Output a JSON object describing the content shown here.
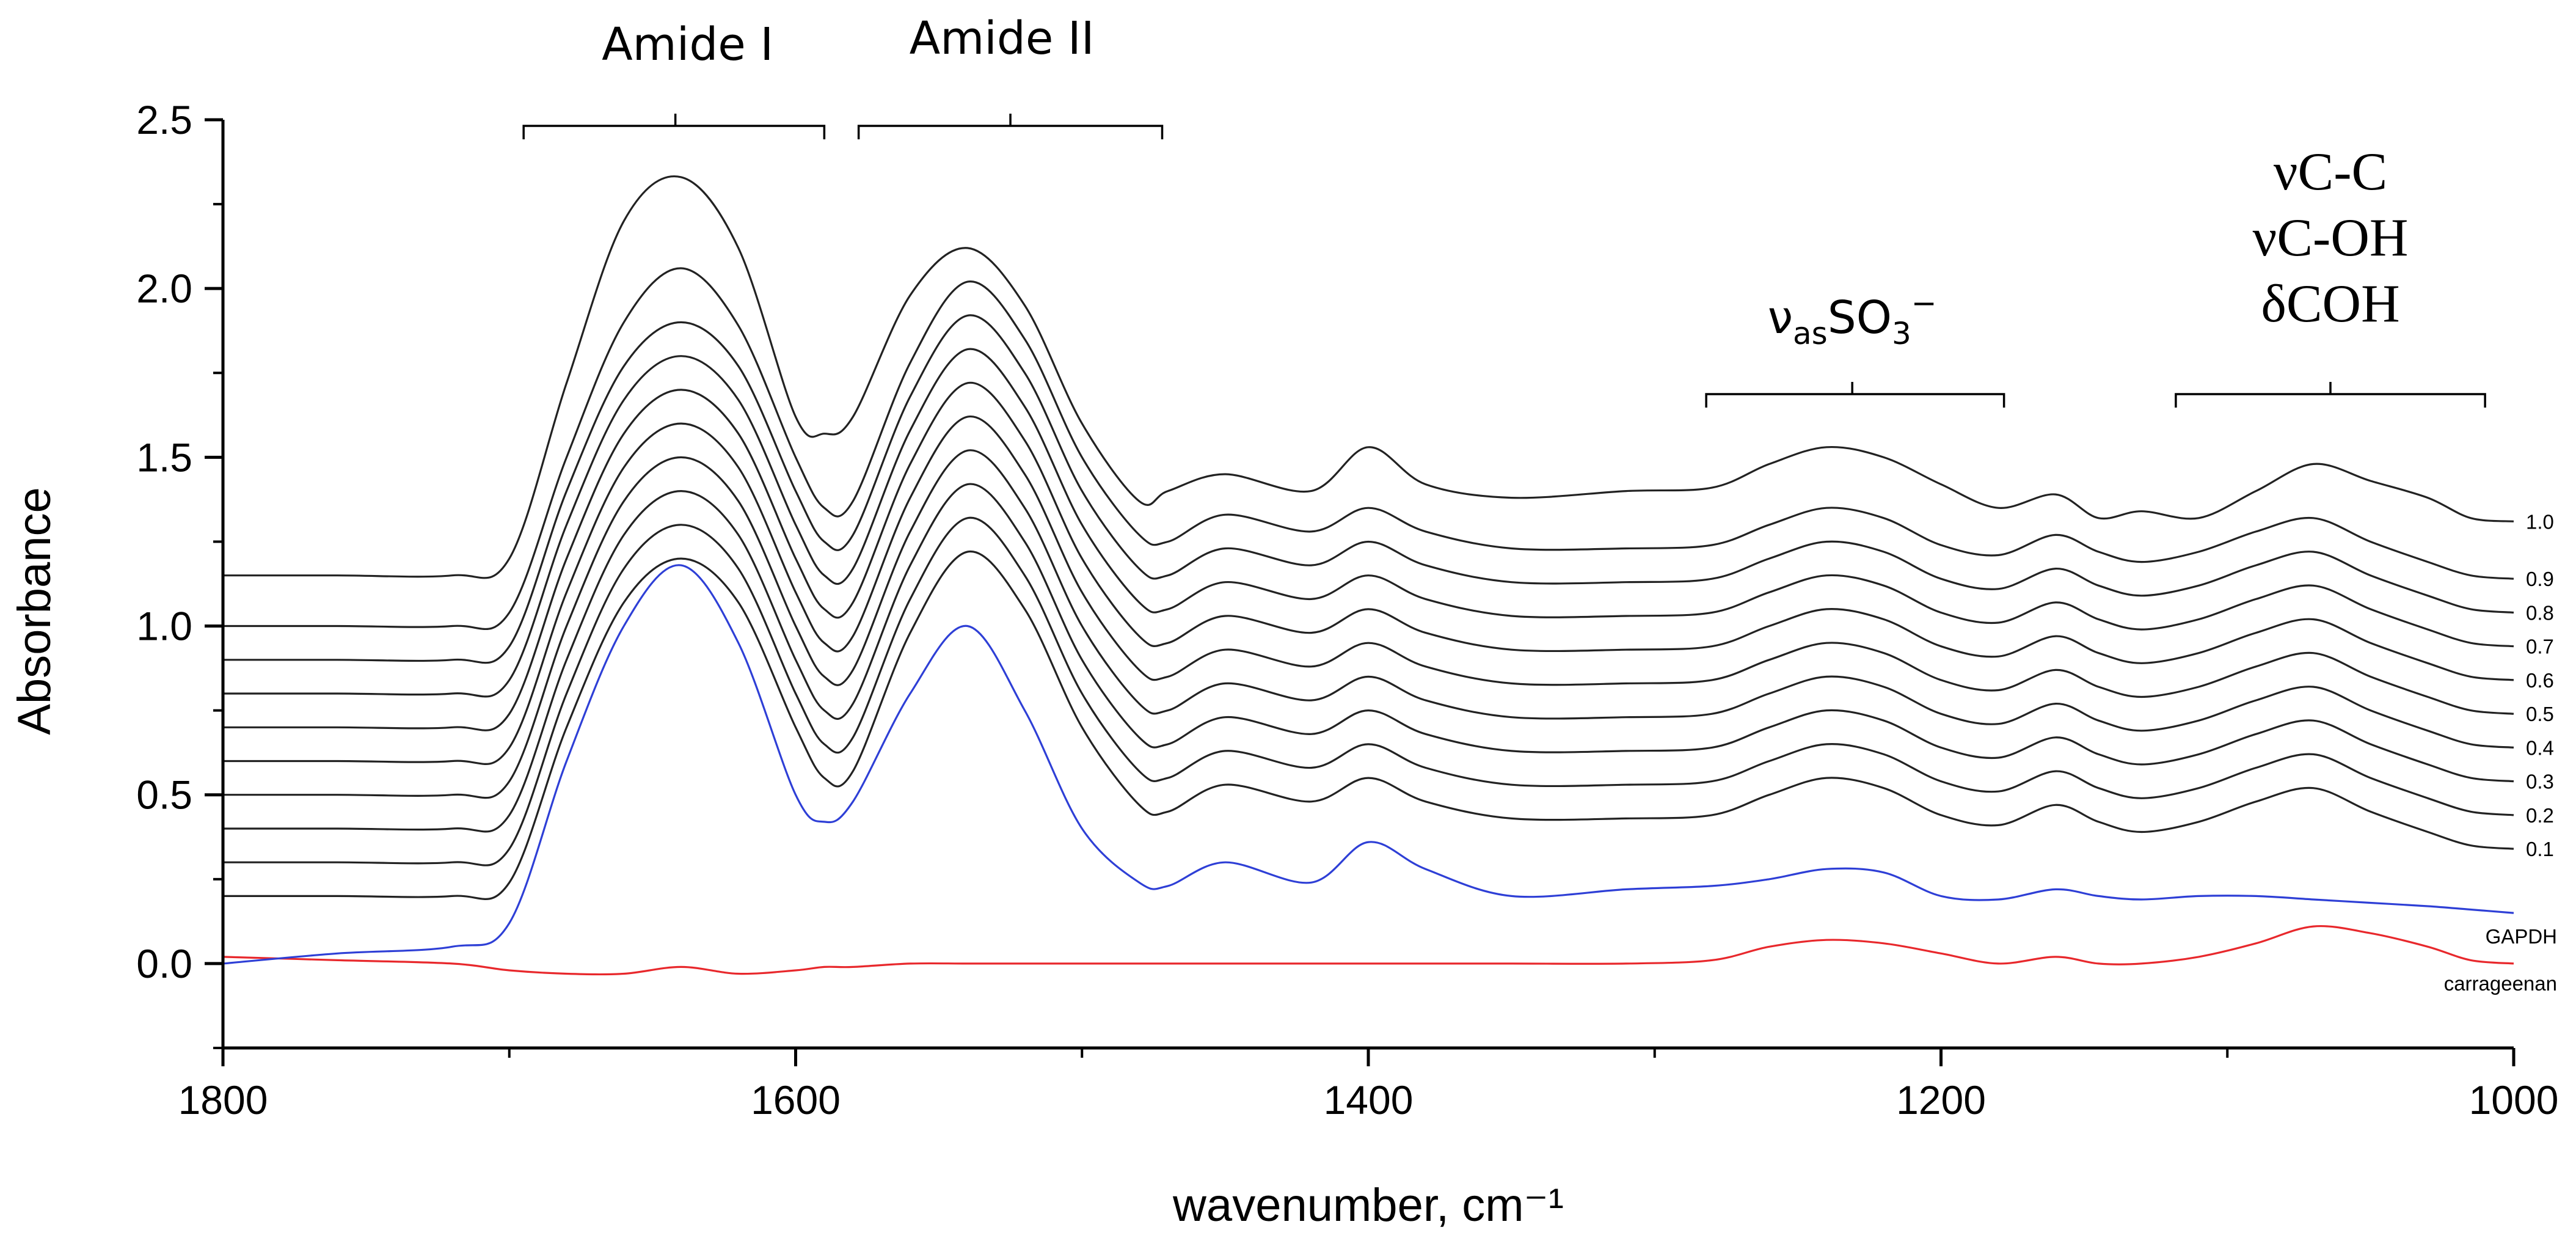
{
  "chart_data": {
    "type": "line",
    "title": "",
    "xlabel": "wavenumber, cm⁻¹",
    "ylabel": "Absorbance",
    "xlim": [
      1800,
      1000
    ],
    "ylim": [
      -0.25,
      2.5
    ],
    "x_ticks": [
      "1800",
      "1600",
      "1400",
      "1200",
      "1000"
    ],
    "y_ticks": [
      "0.0",
      "0.5",
      "1.0",
      "1.5",
      "2.0",
      "2.5"
    ],
    "band_annotations": [
      {
        "name": "amide-i",
        "label": "Amide I",
        "range": [
          1695,
          1590
        ],
        "center": 1642
      },
      {
        "name": "amide-ii",
        "label": "Amide II",
        "range": [
          1578,
          1472
        ],
        "center": 1525
      },
      {
        "name": "sulfonate",
        "label_main": "ν",
        "label_sub": "as",
        "label_rest": "SO",
        "label_sub2": "3",
        "label_sup": "−",
        "range": [
          1282,
          1178
        ],
        "center": 1231
      },
      {
        "name": "carbohydrate",
        "lines": [
          "νC-C",
          "νC-OH",
          "δCOH"
        ],
        "range": [
          1118,
          1010
        ],
        "center": 1064
      }
    ],
    "x": [
      1800,
      1760,
      1720,
      1700,
      1680,
      1660,
      1640,
      1620,
      1600,
      1590,
      1580,
      1560,
      1540,
      1520,
      1500,
      1480,
      1470,
      1450,
      1420,
      1400,
      1380,
      1350,
      1310,
      1280,
      1260,
      1240,
      1220,
      1200,
      1180,
      1160,
      1145,
      1130,
      1110,
      1090,
      1070,
      1050,
      1030,
      1015,
      1000
    ],
    "series": [
      {
        "name": "carrageenan",
        "label": "carrageenan",
        "color": "#e8282c",
        "values": [
          0.02,
          0.01,
          0.0,
          -0.02,
          -0.03,
          -0.03,
          -0.01,
          -0.03,
          -0.02,
          -0.01,
          -0.01,
          0.0,
          0.0,
          0.0,
          0.0,
          0.0,
          0.0,
          0.0,
          0.0,
          0.0,
          0.0,
          0.0,
          0.0,
          0.01,
          0.05,
          0.07,
          0.06,
          0.03,
          0.0,
          0.02,
          0.0,
          0.0,
          0.02,
          0.06,
          0.11,
          0.09,
          0.05,
          0.01,
          0.0
        ]
      },
      {
        "name": "gapdh",
        "label": "GAPDH",
        "color": "#2e3fd6",
        "values": [
          0.0,
          0.03,
          0.05,
          0.12,
          0.6,
          1.0,
          1.18,
          0.95,
          0.5,
          0.42,
          0.48,
          0.8,
          1.0,
          0.75,
          0.4,
          0.24,
          0.23,
          0.3,
          0.24,
          0.36,
          0.28,
          0.2,
          0.22,
          0.23,
          0.25,
          0.28,
          0.27,
          0.2,
          0.19,
          0.22,
          0.2,
          0.19,
          0.2,
          0.2,
          0.19,
          0.18,
          0.17,
          0.16,
          0.15
        ]
      },
      {
        "name": "ratio-0.1",
        "label": "0.1",
        "color": "#222222",
        "offset": 0.2,
        "values": [
          0.2,
          0.2,
          0.2,
          0.24,
          0.7,
          1.07,
          1.2,
          1.07,
          0.7,
          0.55,
          0.57,
          0.98,
          1.22,
          1.05,
          0.7,
          0.47,
          0.45,
          0.53,
          0.48,
          0.55,
          0.48,
          0.43,
          0.43,
          0.44,
          0.5,
          0.55,
          0.52,
          0.44,
          0.41,
          0.47,
          0.42,
          0.39,
          0.42,
          0.48,
          0.52,
          0.45,
          0.39,
          0.35,
          0.34
        ]
      },
      {
        "name": "ratio-0.2",
        "label": "0.2",
        "color": "#222222",
        "offset": 0.3,
        "values": [
          0.3,
          0.3,
          0.3,
          0.34,
          0.8,
          1.17,
          1.3,
          1.17,
          0.8,
          0.65,
          0.67,
          1.08,
          1.32,
          1.15,
          0.8,
          0.57,
          0.55,
          0.63,
          0.58,
          0.65,
          0.58,
          0.53,
          0.53,
          0.54,
          0.6,
          0.65,
          0.62,
          0.54,
          0.51,
          0.57,
          0.52,
          0.49,
          0.52,
          0.58,
          0.62,
          0.55,
          0.49,
          0.45,
          0.44
        ]
      },
      {
        "name": "ratio-0.3",
        "label": "0.3",
        "color": "#222222",
        "offset": 0.4,
        "values": [
          0.4,
          0.4,
          0.4,
          0.44,
          0.9,
          1.27,
          1.4,
          1.27,
          0.9,
          0.75,
          0.77,
          1.18,
          1.42,
          1.25,
          0.9,
          0.67,
          0.65,
          0.73,
          0.68,
          0.75,
          0.68,
          0.63,
          0.63,
          0.64,
          0.7,
          0.75,
          0.72,
          0.64,
          0.61,
          0.67,
          0.62,
          0.59,
          0.62,
          0.68,
          0.72,
          0.65,
          0.59,
          0.55,
          0.54
        ]
      },
      {
        "name": "ratio-0.4",
        "label": "0.4",
        "color": "#222222",
        "offset": 0.5,
        "values": [
          0.5,
          0.5,
          0.5,
          0.54,
          1.0,
          1.37,
          1.5,
          1.37,
          1.0,
          0.85,
          0.87,
          1.28,
          1.52,
          1.35,
          1.0,
          0.77,
          0.75,
          0.83,
          0.78,
          0.85,
          0.78,
          0.73,
          0.73,
          0.74,
          0.8,
          0.85,
          0.82,
          0.74,
          0.71,
          0.77,
          0.72,
          0.69,
          0.72,
          0.78,
          0.82,
          0.75,
          0.69,
          0.65,
          0.64
        ]
      },
      {
        "name": "ratio-0.5",
        "label": "0.5",
        "color": "#222222",
        "offset": 0.6,
        "values": [
          0.6,
          0.6,
          0.6,
          0.64,
          1.1,
          1.47,
          1.6,
          1.47,
          1.1,
          0.95,
          0.97,
          1.38,
          1.62,
          1.45,
          1.1,
          0.87,
          0.85,
          0.93,
          0.88,
          0.95,
          0.88,
          0.83,
          0.83,
          0.84,
          0.9,
          0.95,
          0.92,
          0.84,
          0.81,
          0.87,
          0.82,
          0.79,
          0.82,
          0.88,
          0.92,
          0.85,
          0.79,
          0.75,
          0.74
        ]
      },
      {
        "name": "ratio-0.6",
        "label": "0.6",
        "color": "#222222",
        "offset": 0.7,
        "values": [
          0.7,
          0.7,
          0.7,
          0.74,
          1.2,
          1.57,
          1.7,
          1.57,
          1.2,
          1.05,
          1.07,
          1.48,
          1.72,
          1.55,
          1.2,
          0.97,
          0.95,
          1.03,
          0.98,
          1.05,
          0.98,
          0.93,
          0.93,
          0.94,
          1.0,
          1.05,
          1.02,
          0.94,
          0.91,
          0.97,
          0.92,
          0.89,
          0.92,
          0.98,
          1.02,
          0.95,
          0.89,
          0.85,
          0.84
        ]
      },
      {
        "name": "ratio-0.7",
        "label": "0.7",
        "color": "#222222",
        "offset": 0.8,
        "values": [
          0.8,
          0.8,
          0.8,
          0.84,
          1.3,
          1.67,
          1.8,
          1.67,
          1.3,
          1.15,
          1.17,
          1.58,
          1.82,
          1.65,
          1.3,
          1.07,
          1.05,
          1.13,
          1.08,
          1.15,
          1.08,
          1.03,
          1.03,
          1.04,
          1.1,
          1.15,
          1.12,
          1.04,
          1.01,
          1.07,
          1.02,
          0.99,
          1.02,
          1.08,
          1.12,
          1.05,
          0.99,
          0.95,
          0.94
        ]
      },
      {
        "name": "ratio-0.8",
        "label": "0.8",
        "color": "#222222",
        "offset": 0.9,
        "values": [
          0.9,
          0.9,
          0.9,
          0.94,
          1.4,
          1.77,
          1.9,
          1.77,
          1.4,
          1.25,
          1.27,
          1.68,
          1.92,
          1.75,
          1.4,
          1.17,
          1.15,
          1.23,
          1.18,
          1.25,
          1.18,
          1.13,
          1.13,
          1.14,
          1.2,
          1.25,
          1.22,
          1.14,
          1.11,
          1.17,
          1.12,
          1.09,
          1.12,
          1.18,
          1.22,
          1.15,
          1.09,
          1.05,
          1.04
        ]
      },
      {
        "name": "ratio-0.9",
        "label": "0.9",
        "color": "#222222",
        "offset": 1.0,
        "values": [
          1.0,
          1.0,
          1.0,
          1.04,
          1.5,
          1.9,
          2.06,
          1.89,
          1.5,
          1.35,
          1.37,
          1.78,
          2.02,
          1.85,
          1.5,
          1.27,
          1.25,
          1.33,
          1.28,
          1.35,
          1.28,
          1.23,
          1.23,
          1.24,
          1.3,
          1.35,
          1.32,
          1.24,
          1.21,
          1.27,
          1.22,
          1.19,
          1.22,
          1.28,
          1.32,
          1.25,
          1.19,
          1.15,
          1.14
        ]
      },
      {
        "name": "ratio-1.0",
        "label": "1.0",
        "color": "#222222",
        "offset": 1.15,
        "values": [
          1.15,
          1.15,
          1.15,
          1.2,
          1.72,
          2.2,
          2.33,
          2.12,
          1.62,
          1.57,
          1.62,
          1.98,
          2.12,
          1.95,
          1.6,
          1.37,
          1.4,
          1.45,
          1.4,
          1.53,
          1.42,
          1.38,
          1.4,
          1.41,
          1.48,
          1.53,
          1.5,
          1.42,
          1.35,
          1.39,
          1.32,
          1.34,
          1.32,
          1.4,
          1.48,
          1.43,
          1.38,
          1.32,
          1.31
        ]
      }
    ]
  }
}
